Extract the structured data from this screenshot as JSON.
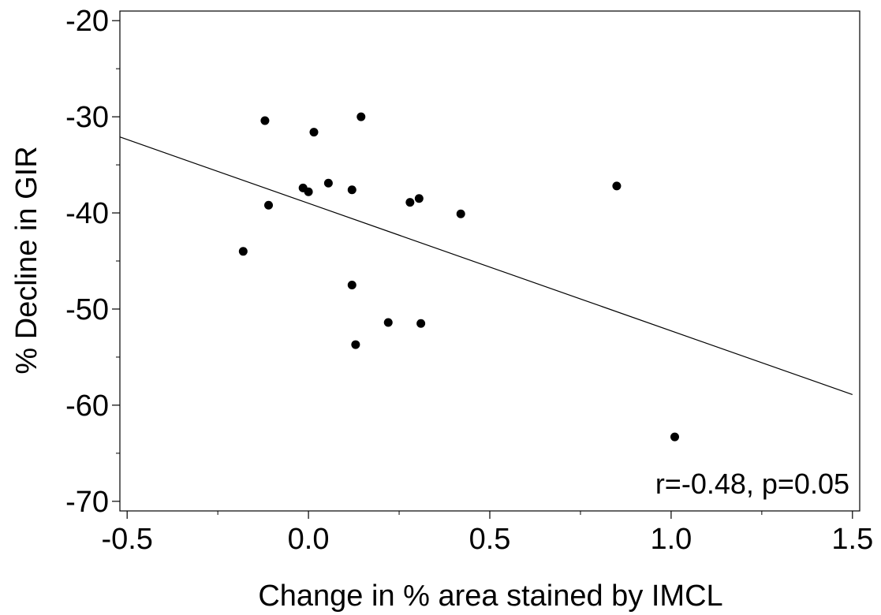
{
  "chart_data": {
    "type": "scatter",
    "title": "",
    "xlabel": "Change in % area stained by IMCL",
    "ylabel": "% Decline in GIR",
    "xlim": [
      -0.52,
      1.52
    ],
    "ylim": [
      -71,
      -19
    ],
    "x_ticks": [
      -0.5,
      0.0,
      0.5,
      1.0,
      1.5
    ],
    "x_tick_labels": [
      "-0.5",
      "0.0",
      "0.5",
      "1.0",
      "1.5"
    ],
    "y_ticks": [
      -20,
      -30,
      -40,
      -50,
      -60,
      -70
    ],
    "y_tick_labels": [
      "-20",
      "-30",
      "-40",
      "-50",
      "-60",
      "-70"
    ],
    "points": [
      {
        "x": -0.18,
        "y": -44.0
      },
      {
        "x": -0.12,
        "y": -30.4
      },
      {
        "x": -0.11,
        "y": -39.2
      },
      {
        "x": -0.015,
        "y": -37.4
      },
      {
        "x": 0.0,
        "y": -37.8
      },
      {
        "x": 0.015,
        "y": -31.6
      },
      {
        "x": 0.055,
        "y": -36.9
      },
      {
        "x": 0.12,
        "y": -37.6
      },
      {
        "x": 0.12,
        "y": -47.5
      },
      {
        "x": 0.13,
        "y": -53.7
      },
      {
        "x": 0.145,
        "y": -30.0
      },
      {
        "x": 0.22,
        "y": -51.4
      },
      {
        "x": 0.28,
        "y": -38.9
      },
      {
        "x": 0.305,
        "y": -38.5
      },
      {
        "x": 0.31,
        "y": -51.5
      },
      {
        "x": 0.42,
        "y": -40.1
      },
      {
        "x": 0.85,
        "y": -37.2
      },
      {
        "x": 1.01,
        "y": -63.3
      }
    ],
    "regression_line": {
      "x": [
        -0.52,
        1.5
      ],
      "y": [
        -32.1,
        -58.9
      ]
    },
    "annotation": "r=-0.48, p=0.05",
    "grid": false,
    "point_color": "#000000",
    "line_color": "#000000"
  }
}
